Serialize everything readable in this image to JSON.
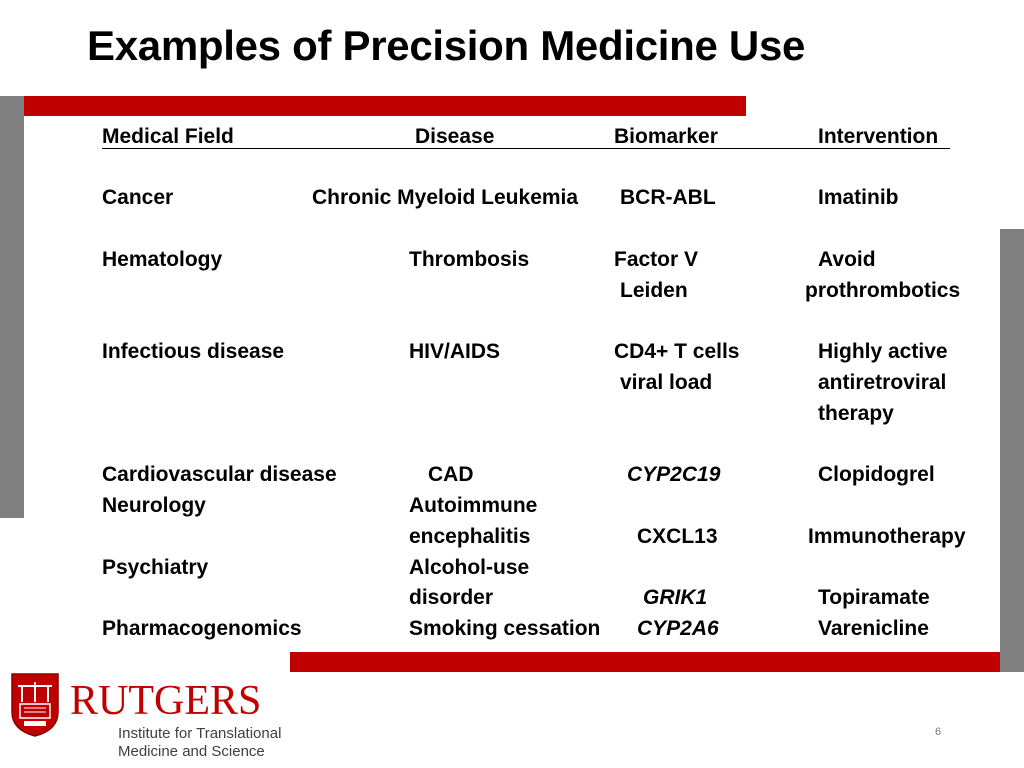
{
  "slide": {
    "title": "Examples of Precision Medicine Use",
    "page_number": "6"
  },
  "table": {
    "headers": [
      "Medical Field",
      "Disease",
      "Biomarker",
      "Intervention"
    ],
    "rows": [
      {
        "field": "Cancer",
        "disease": "Chronic Myeloid Leukemia",
        "biomarker": "BCR-ABL",
        "intervention": "Imatinib"
      },
      {
        "field": "Hematology",
        "disease": "Thrombosis",
        "biomarker_1": "Factor V",
        "biomarker_2": "Leiden",
        "intervention_1": "Avoid",
        "intervention_2": "prothrombotics"
      },
      {
        "field": "Infectious disease",
        "disease": "HIV/AIDS",
        "biomarker_1": "CD4+ T cells",
        "biomarker_2": "viral load",
        "intervention_1": "Highly active",
        "intervention_2": "antiretroviral",
        "intervention_3": "therapy"
      },
      {
        "field": "Cardiovascular disease",
        "disease": "CAD",
        "biomarker": "CYP2C19",
        "intervention": "Clopidogrel"
      },
      {
        "field": "Neurology",
        "disease_1": "Autoimmune",
        "disease_2": "encephalitis",
        "biomarker": "CXCL13",
        "intervention": "Immunotherapy"
      },
      {
        "field": "Psychiatry",
        "disease_1": "Alcohol-use",
        "disease_2": "disorder",
        "biomarker": "GRIK1",
        "intervention": "Topiramate"
      },
      {
        "field": "Pharmacogenomics",
        "disease": "Smoking cessation",
        "biomarker": "CYP2A6",
        "intervention": "Varenicline"
      }
    ]
  },
  "footer": {
    "brand": "RUTGERS",
    "institute_line1": "Institute for Translational",
    "institute_line2": "Medicine and Science"
  },
  "colors": {
    "accent_red": "#c00000",
    "bar_gray": "#808080"
  },
  "icons": {
    "logo": "rutgers-shield-icon"
  }
}
